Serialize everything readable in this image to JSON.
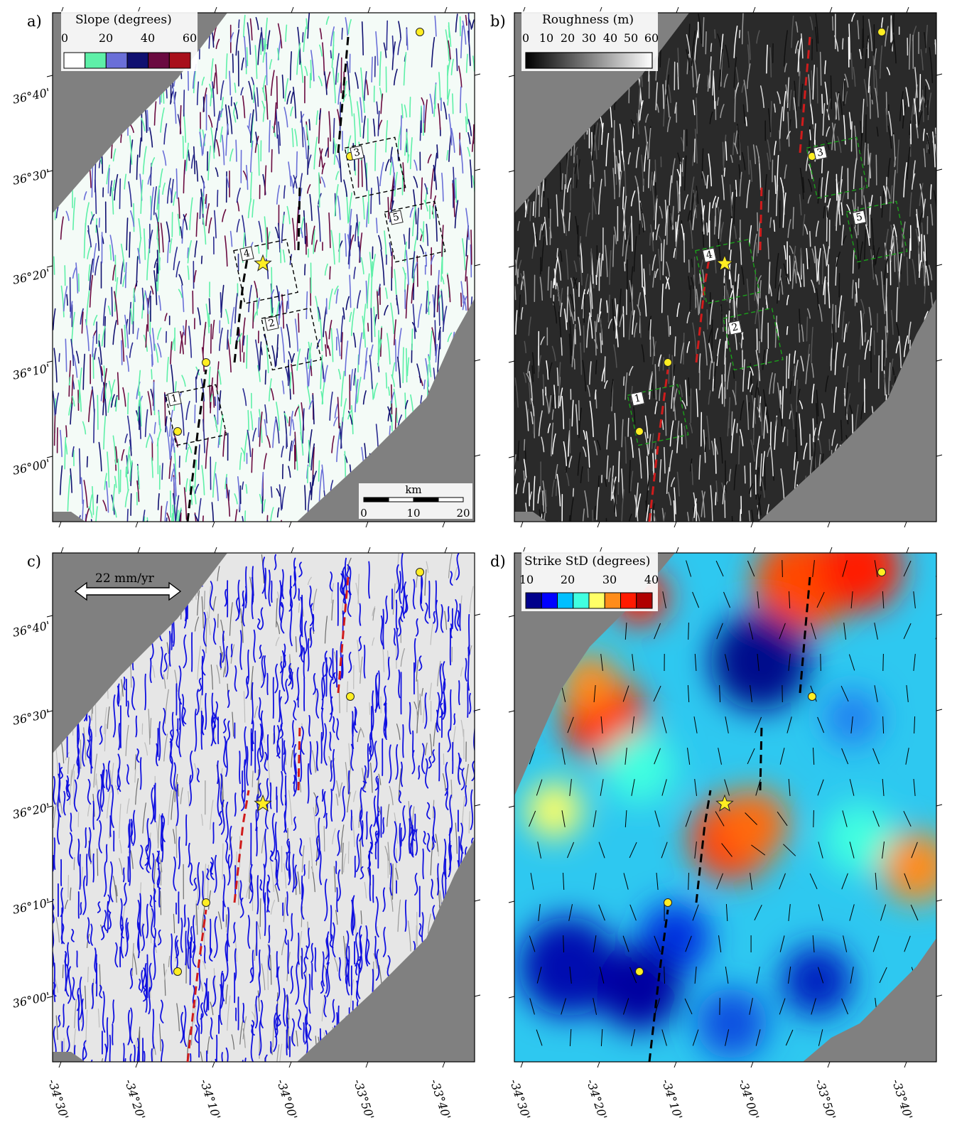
{
  "panels": [
    {
      "id": "a",
      "label": "a)",
      "colorbar": {
        "title": "Slope (degrees)",
        "ticks": [
          "0",
          "20",
          "40",
          "60"
        ],
        "colors": [
          "#ffffff",
          "#5ef0a8",
          "#6a6fd8",
          "#101070",
          "#6a0a40",
          "#a80f1a"
        ]
      },
      "boxes": [
        "1",
        "2",
        "3",
        "4",
        "5"
      ],
      "scalebar": {
        "unit": "km",
        "ticks": [
          "0",
          "10",
          "20"
        ]
      },
      "axis_line_color": "#000000",
      "background": "slope"
    },
    {
      "id": "b",
      "label": "b)",
      "colorbar": {
        "title": "Roughness (m)",
        "ticks": [
          "0",
          "10",
          "20",
          "30",
          "40",
          "50",
          "60"
        ],
        "colors": [
          "#000000",
          "#ffffff"
        ]
      },
      "boxes": [
        "1",
        "2",
        "3",
        "4",
        "5"
      ],
      "axis_line_color": "#d01c1c",
      "box_color": "#1aa01a",
      "background": "roughness"
    },
    {
      "id": "c",
      "label": "c)",
      "arrow_label": "22 mm/yr",
      "axis_line_color": "#d01c1c",
      "background": "contours"
    },
    {
      "id": "d",
      "label": "d)",
      "colorbar": {
        "title": "Strike StD (degrees)",
        "ticks": [
          "10",
          "20",
          "30",
          "40"
        ],
        "colors": [
          "#00008b",
          "#0000ff",
          "#00bfff",
          "#40ffe0",
          "#ffff66",
          "#ff8c1a",
          "#ff1a00",
          "#b00000"
        ]
      },
      "axis_line_color": "#000000",
      "background": "strike"
    }
  ],
  "axes": {
    "lat_ticks": [
      "36°40'",
      "36°30'",
      "36°20'",
      "36°10'",
      "36°00'"
    ],
    "lon_ticks": [
      "-34°30'",
      "-34°20'",
      "-34°10'",
      "-34°00'",
      "-33°50'",
      "-33°40'"
    ]
  },
  "colors": {
    "no_data": "#808080",
    "site_marker": "#ffee22",
    "star": "#ffee22",
    "contour": "#1010e0"
  }
}
